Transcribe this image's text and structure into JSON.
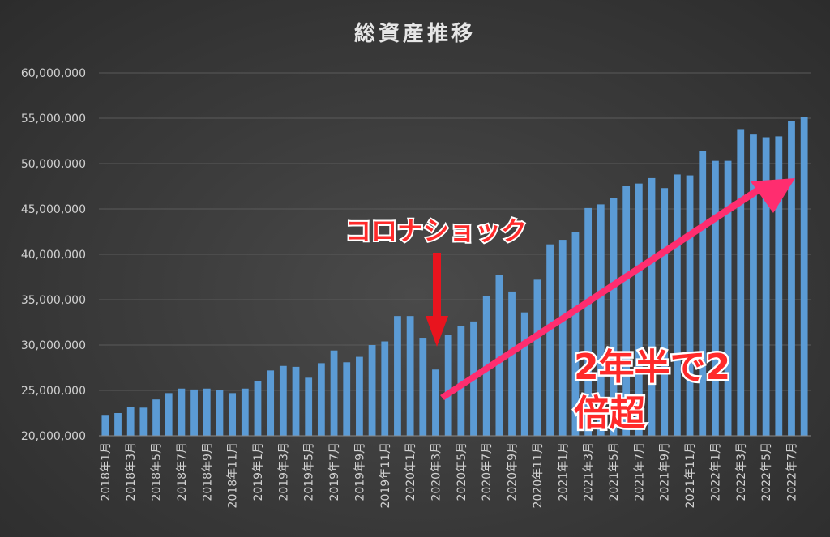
{
  "chart_data": {
    "type": "bar",
    "title": "総資産推移",
    "ylim": [
      20000000,
      60000000
    ],
    "yticks": [
      "20,000,000",
      "25,000,000",
      "30,000,000",
      "35,000,000",
      "40,000,000",
      "45,000,000",
      "50,000,000",
      "55,000,000",
      "60,000,000"
    ],
    "categories": [
      "2018年1月",
      "2018年2月",
      "2018年3月",
      "2018年4月",
      "2018年5月",
      "2018年6月",
      "2018年7月",
      "2018年8月",
      "2018年9月",
      "2018年10月",
      "2018年11月",
      "2018年12月",
      "2019年1月",
      "2019年2月",
      "2019年3月",
      "2019年4月",
      "2019年5月",
      "2019年6月",
      "2019年7月",
      "2019年8月",
      "2019年9月",
      "2019年10月",
      "2019年11月",
      "2019年12月",
      "2020年1月",
      "2020年2月",
      "2020年3月",
      "2020年4月",
      "2020年5月",
      "2020年6月",
      "2020年7月",
      "2020年8月",
      "2020年9月",
      "2020年10月",
      "2020年11月",
      "2020年12月",
      "2021年1月",
      "2021年2月",
      "2021年3月",
      "2021年4月",
      "2021年5月",
      "2021年6月",
      "2021年7月",
      "2021年8月",
      "2021年9月",
      "2021年10月",
      "2021年11月",
      "2021年12月",
      "2022年1月",
      "2022年2月",
      "2022年3月",
      "2022年4月",
      "2022年5月",
      "2022年6月",
      "2022年7月",
      "2022年8月"
    ],
    "xtick_labels": [
      "2018年1月",
      "2018年3月",
      "2018年5月",
      "2018年7月",
      "2018年9月",
      "2018年11月",
      "2019年1月",
      "2019年3月",
      "2019年5月",
      "2019年7月",
      "2019年9月",
      "2019年11月",
      "2020年1月",
      "2020年3月",
      "2020年5月",
      "2020年7月",
      "2020年9月",
      "2020年11月",
      "2021年1月",
      "2021年3月",
      "2021年5月",
      "2021年7月",
      "2021年9月",
      "2021年11月",
      "2022年1月",
      "2022年3月",
      "2022年5月",
      "2022年7月"
    ],
    "values": [
      22300000,
      22500000,
      23200000,
      23100000,
      24000000,
      24700000,
      25200000,
      25100000,
      25200000,
      25000000,
      24700000,
      25200000,
      26000000,
      27200000,
      27700000,
      27600000,
      26400000,
      28000000,
      29400000,
      28100000,
      28700000,
      30000000,
      30400000,
      33200000,
      33200000,
      30800000,
      27300000,
      31100000,
      32100000,
      32600000,
      35400000,
      37700000,
      35900000,
      33600000,
      37200000,
      41100000,
      41600000,
      42500000,
      45100000,
      45500000,
      46200000,
      47500000,
      47800000,
      48400000,
      47300000,
      48800000,
      48700000,
      51400000,
      50300000,
      50300000,
      53800000,
      53200000,
      52900000,
      53000000,
      54700000,
      55100000
    ],
    "grid": true,
    "annotations": [
      {
        "text": "コロナショック",
        "color": "#ff2a2a",
        "points_to": "2020年3月"
      },
      {
        "text_line1": "2年半で2",
        "text_line2": "倍超",
        "color": "#ff2a2a"
      }
    ],
    "bar_color": "#5b9bd5"
  }
}
